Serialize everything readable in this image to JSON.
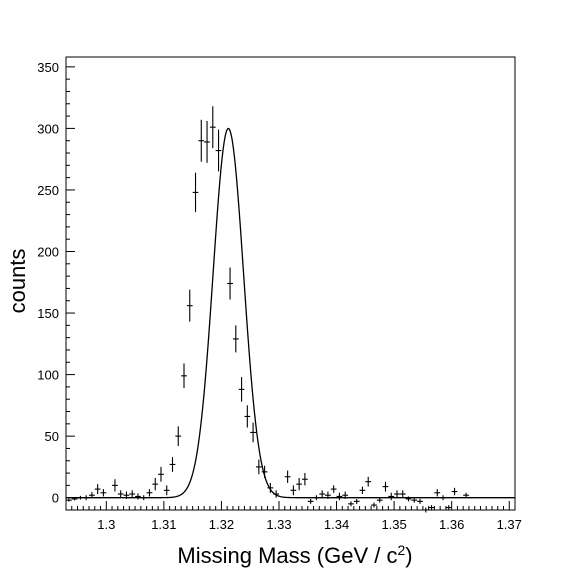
{
  "chart_data": {
    "type": "scatter",
    "title": "",
    "xlabel": "Missing Mass (GeV / c",
    "xlabel_sup": "2",
    "xlabel_close": ")",
    "ylabel": "counts",
    "xlim": [
      1.293,
      1.371
    ],
    "ylim": [
      -10,
      358
    ],
    "xticks": [
      1.3,
      1.31,
      1.32,
      1.33,
      1.34,
      1.35,
      1.36,
      1.37
    ],
    "xtick_labels": [
      "1.3",
      "1.31",
      "1.32",
      "1.33",
      "1.34",
      "1.35",
      "1.36",
      "1.37"
    ],
    "yticks": [
      0,
      50,
      100,
      150,
      200,
      250,
      300,
      350
    ],
    "ytick_labels": [
      "0",
      "50",
      "100",
      "150",
      "200",
      "250",
      "300",
      "350"
    ],
    "grid": false,
    "series": [
      {
        "kind": "points_with_error_bars",
        "x_half_width": 0.0005,
        "points": [
          [
            1.2935,
            -2,
            1.2
          ],
          [
            1.2945,
            -1,
            1.2
          ],
          [
            1.2955,
            0,
            1.5
          ],
          [
            1.2965,
            0,
            2
          ],
          [
            1.2975,
            2,
            2.5
          ],
          [
            1.2985,
            7,
            4
          ],
          [
            1.2995,
            4,
            3
          ],
          [
            1.3015,
            10,
            5
          ],
          [
            1.3025,
            3,
            3
          ],
          [
            1.3035,
            2,
            3
          ],
          [
            1.3045,
            3,
            3
          ],
          [
            1.3055,
            1,
            2.5
          ],
          [
            1.3065,
            0,
            2
          ],
          [
            1.3075,
            4,
            3
          ],
          [
            1.3085,
            11,
            5
          ],
          [
            1.3095,
            19,
            6
          ],
          [
            1.3105,
            6,
            4
          ],
          [
            1.3115,
            27,
            6
          ],
          [
            1.3125,
            50,
            8
          ],
          [
            1.3135,
            99,
            10
          ],
          [
            1.3145,
            156,
            13
          ],
          [
            1.3155,
            248,
            16
          ],
          [
            1.3165,
            290,
            17
          ],
          [
            1.3175,
            289,
            17
          ],
          [
            1.3185,
            301,
            17
          ],
          [
            1.3195,
            282,
            17
          ],
          [
            1.3215,
            174,
            13
          ],
          [
            1.3225,
            129,
            11
          ],
          [
            1.3235,
            88,
            10
          ],
          [
            1.3245,
            66,
            9
          ],
          [
            1.3255,
            53,
            8
          ],
          [
            1.3265,
            25,
            6
          ],
          [
            1.3275,
            21,
            5
          ],
          [
            1.3285,
            8,
            4
          ],
          [
            1.3295,
            3,
            3
          ],
          [
            1.3315,
            17,
            5
          ],
          [
            1.3325,
            6,
            4
          ],
          [
            1.3335,
            11,
            5
          ],
          [
            1.3345,
            15,
            5
          ],
          [
            1.3355,
            -3,
            2
          ],
          [
            1.3365,
            0,
            2
          ],
          [
            1.3375,
            3,
            3
          ],
          [
            1.3385,
            2,
            3
          ],
          [
            1.3395,
            7,
            3
          ],
          [
            1.3405,
            1,
            3
          ],
          [
            1.3415,
            2,
            3
          ],
          [
            1.3425,
            -5,
            2
          ],
          [
            1.3435,
            -3,
            2
          ],
          [
            1.3445,
            6,
            3
          ],
          [
            1.3455,
            13,
            4
          ],
          [
            1.3465,
            -6,
            2
          ],
          [
            1.3475,
            -2,
            2
          ],
          [
            1.3485,
            9,
            4
          ],
          [
            1.3495,
            1,
            3
          ],
          [
            1.3505,
            3,
            3
          ],
          [
            1.3515,
            3,
            3
          ],
          [
            1.3525,
            -1,
            2
          ],
          [
            1.3535,
            -2,
            2
          ],
          [
            1.3545,
            -3,
            2
          ],
          [
            1.3555,
            -10,
            2
          ],
          [
            1.3565,
            -8,
            2
          ],
          [
            1.3575,
            4,
            3
          ],
          [
            1.3585,
            0,
            2
          ],
          [
            1.3595,
            -8,
            2
          ],
          [
            1.3605,
            5,
            3
          ],
          [
            1.3625,
            2,
            2
          ]
        ]
      },
      {
        "kind": "fit_curve",
        "model": "gaussian",
        "amplitude": 300,
        "mean": 1.3212,
        "sigma": 0.00265,
        "baseline": 0
      }
    ]
  }
}
